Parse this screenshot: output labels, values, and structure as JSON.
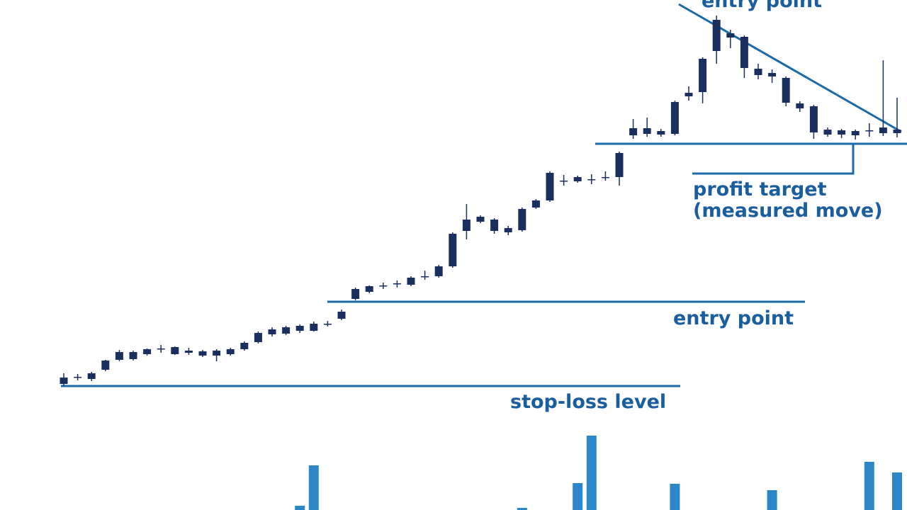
{
  "chart_data": {
    "type": "candlestick",
    "ylim": [
      0,
      720
    ],
    "candle_color": "#1b2f5e",
    "volume_color": "#2b87c8",
    "line_color": "#1a6aa8",
    "open": [
      178,
      187,
      185,
      198,
      212,
      213,
      220,
      227,
      220,
      222,
      218,
      218,
      220,
      227,
      237,
      248,
      249,
      253,
      253,
      262,
      270,
      298,
      308,
      316,
      319,
      318,
      329,
      330,
      344,
      394,
      407,
      410,
      392,
      395,
      427,
      437,
      464,
      464,
      466,
      469,
      470,
      529,
      531,
      530,
      531,
      584,
      590,
      648,
      667,
      668,
      623,
      617,
      610,
      574,
      570,
      537,
      536,
      535,
      535,
      532,
      532
    ],
    "high": [
      193,
      192,
      195,
      212,
      226,
      225,
      228,
      233,
      231,
      229,
      226,
      227,
      229,
      238,
      252,
      258,
      260,
      262,
      266,
      267,
      283,
      314,
      317,
      321,
      324,
      330,
      338,
      346,
      392,
      432,
      416,
      412,
      401,
      427,
      439,
      478,
      473,
      472,
      474,
      478,
      506,
      552,
      554,
      538,
      578,
      598,
      639,
      698,
      678,
      670,
      630,
      622,
      612,
      577,
      572,
      540,
      538,
      537,
      546,
      635,
      582
    ],
    "low": [
      175,
      183,
      182,
      196,
      210,
      211,
      218,
      222,
      219,
      219,
      216,
      210,
      218,
      225,
      235,
      245,
      247,
      250,
      252,
      259,
      268,
      296,
      306,
      312,
      314,
      316,
      325,
      328,
      342,
      382,
      405,
      390,
      388,
      393,
      425,
      435,
      458,
      462,
      460,
      465,
      458,
      524,
      527,
      527,
      529,
      578,
      574,
      630,
      652,
      610,
      608,
      603,
      570,
      562,
      524,
      527,
      525,
      523,
      527,
      528,
      526
    ],
    "close": [
      187,
      188,
      193,
      211,
      223,
      223,
      227,
      228,
      230,
      225,
      224,
      225,
      227,
      236,
      250,
      255,
      258,
      260,
      263,
      263,
      280,
      312,
      316,
      317,
      320,
      328,
      330,
      344,
      390,
      410,
      414,
      394,
      398,
      425,
      437,
      476,
      465,
      470,
      467,
      470,
      504,
      539,
      539,
      535,
      576,
      589,
      637,
      692,
      673,
      624,
      614,
      612,
      575,
      567,
      533,
      530,
      530,
      529,
      536,
      540,
      537
    ],
    "volume": [
      null,
      null,
      null,
      null,
      null,
      null,
      null,
      null,
      null,
      null,
      null,
      null,
      null,
      null,
      null,
      null,
      null,
      6,
      63,
      null,
      null,
      null,
      null,
      null,
      null,
      null,
      null,
      null,
      null,
      null,
      null,
      null,
      null,
      3,
      null,
      null,
      null,
      38,
      105,
      null,
      null,
      null,
      null,
      null,
      37,
      null,
      null,
      null,
      null,
      null,
      null,
      28,
      null,
      null,
      null,
      null,
      null,
      null,
      68,
      null,
      53
    ],
    "levels": [
      {
        "label": "stop-loss level",
        "value": 175
      },
      {
        "label": "entry point",
        "value": 294
      },
      {
        "label": "entry point",
        "value": 517
      }
    ],
    "annotations": [
      "profit target",
      "(measured move)"
    ]
  }
}
